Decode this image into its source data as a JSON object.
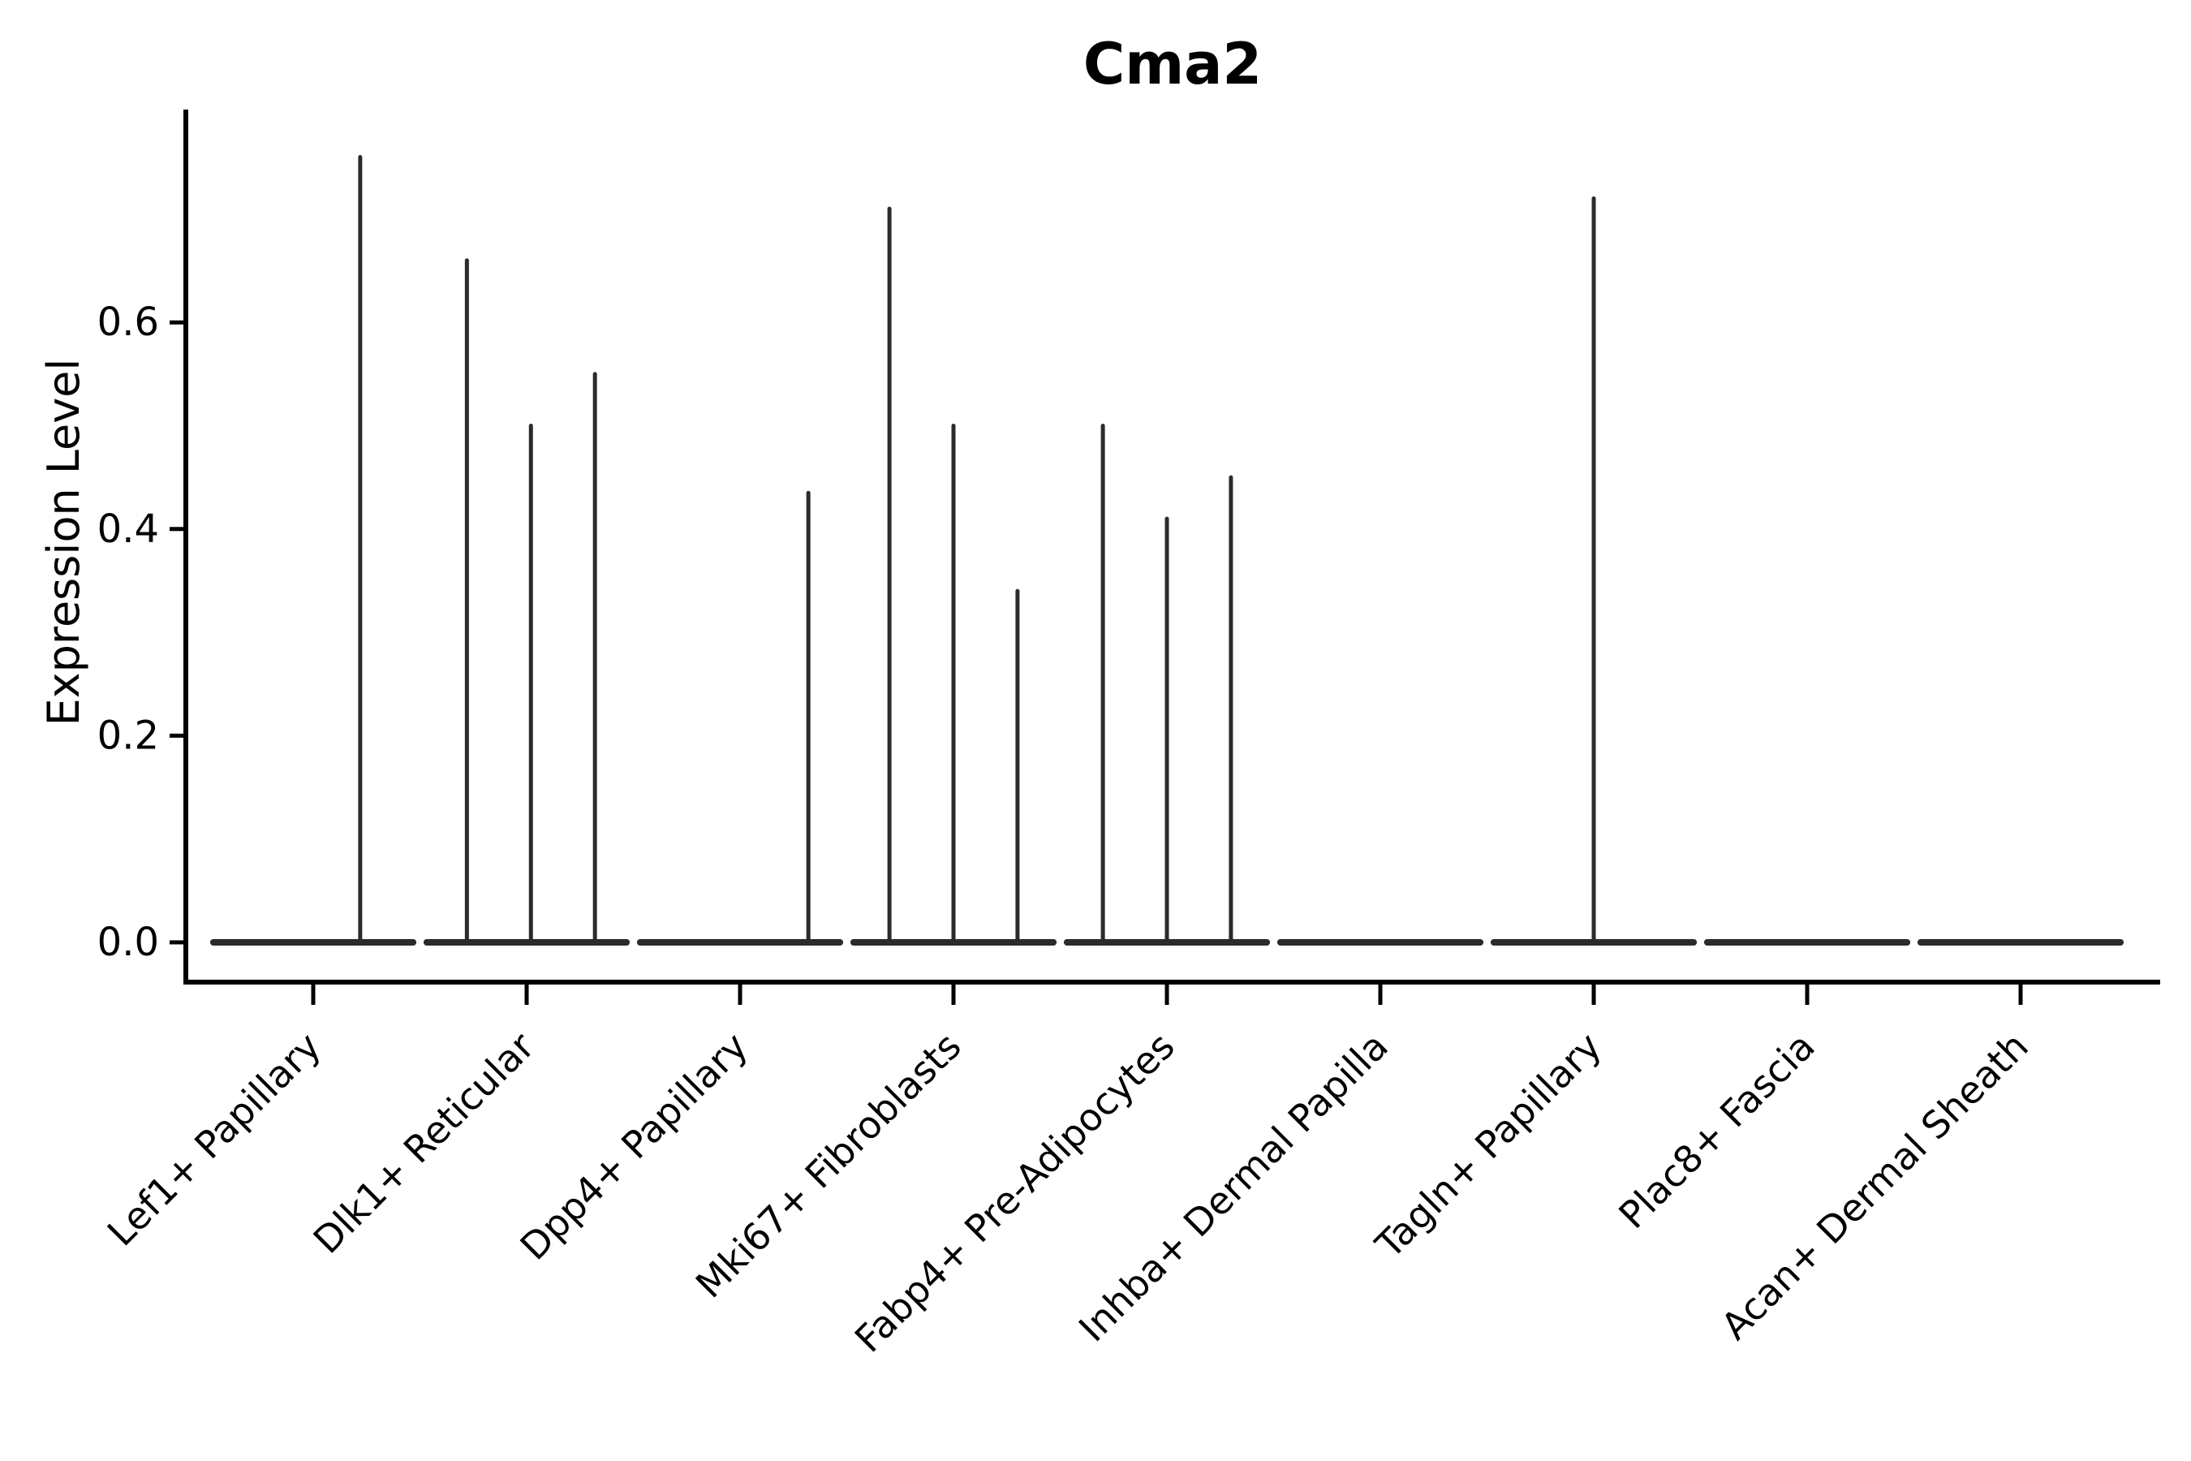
{
  "chart_data": {
    "type": "violin",
    "title": "Cma2",
    "xlabel": "",
    "ylabel": "Expression Level",
    "yticks": [
      0.0,
      0.2,
      0.4,
      0.6
    ],
    "ylim": [
      -0.04,
      0.81
    ],
    "grid": false,
    "legend": null,
    "line_color": "#2b2b2b",
    "axis_color": "#000000",
    "violin_base_halfwidth": 0.468,
    "categories": [
      "Lef1+ Papillary",
      "Dlk1+ Reticular",
      "Dpp4+ Papillary",
      "Mki67+ Fibroblasts",
      "Fabp4+ Pre-Adipocytes",
      "Inhba+ Dermal Papilla",
      "Tagln+ Papillary",
      "Plac8+ Fascia",
      "Acan+ Dermal Sheath"
    ],
    "violins": [
      {
        "category": "Lef1+ Papillary",
        "spikes": [
          {
            "x_offset": 0.22,
            "max": 0.76
          }
        ]
      },
      {
        "category": "Dlk1+ Reticular",
        "spikes": [
          {
            "x_offset": -0.28,
            "max": 0.66
          },
          {
            "x_offset": 0.02,
            "max": 0.5
          },
          {
            "x_offset": 0.32,
            "max": 0.55
          }
        ]
      },
      {
        "category": "Dpp4+ Papillary",
        "spikes": [
          {
            "x_offset": 0.32,
            "max": 0.435
          }
        ]
      },
      {
        "category": "Mki67+ Fibroblasts",
        "spikes": [
          {
            "x_offset": -0.3,
            "max": 0.71
          },
          {
            "x_offset": 0.0,
            "max": 0.5
          },
          {
            "x_offset": 0.3,
            "max": 0.34
          }
        ]
      },
      {
        "category": "Fabp4+ Pre-Adipocytes",
        "spikes": [
          {
            "x_offset": -0.3,
            "max": 0.5
          },
          {
            "x_offset": 0.0,
            "max": 0.41
          },
          {
            "x_offset": 0.3,
            "max": 0.45
          }
        ]
      },
      {
        "category": "Inhba+ Dermal Papilla",
        "spikes": []
      },
      {
        "category": "Tagln+ Papillary",
        "spikes": [
          {
            "x_offset": 0.0,
            "max": 0.72
          }
        ]
      },
      {
        "category": "Plac8+ Fascia",
        "spikes": []
      },
      {
        "category": "Acan+ Dermal Sheath",
        "spikes": []
      }
    ]
  }
}
